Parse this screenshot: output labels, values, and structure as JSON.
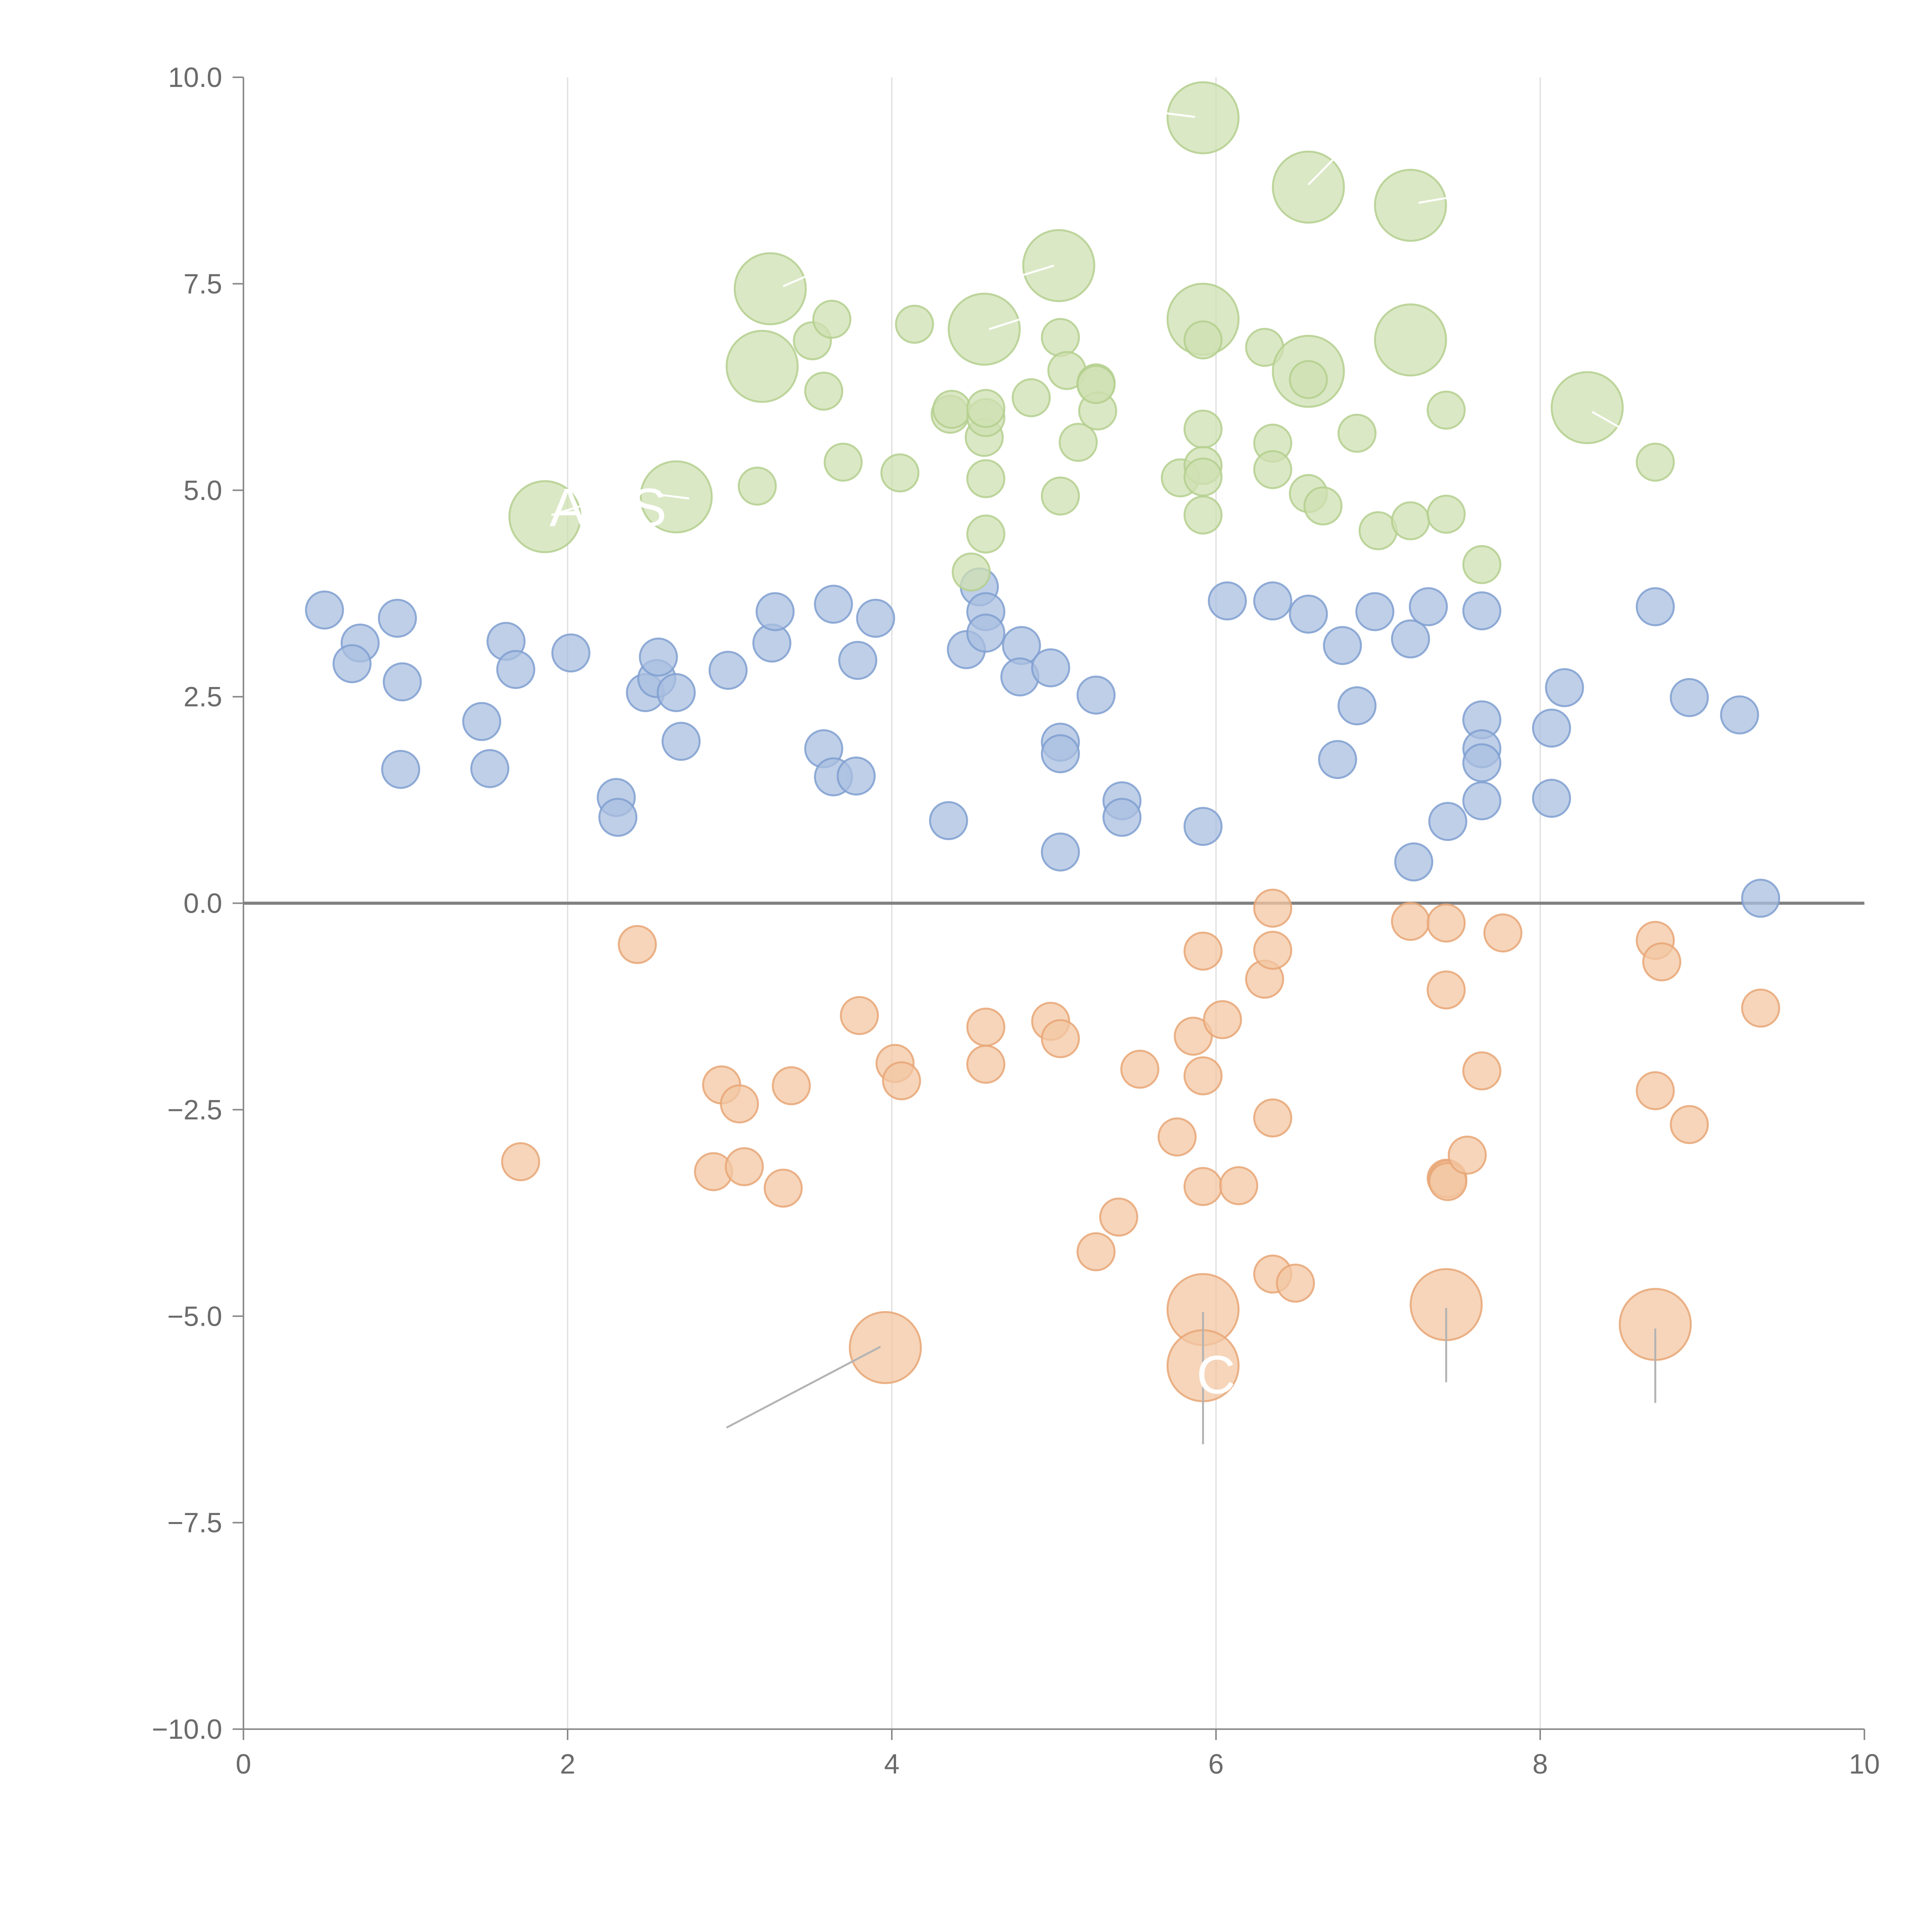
{
  "chart_data": {
    "type": "scatter",
    "title": "",
    "xlabel": "",
    "ylabel": "",
    "xlim": [
      0,
      10
    ],
    "ylim": [
      -10,
      10
    ],
    "x_ticks": [
      "0",
      "2",
      "4",
      "6",
      "8",
      "10"
    ],
    "y_ticks": [
      "−10.0",
      "−7.5",
      "−5.0",
      "−2.5",
      "0.0",
      "2.5",
      "5.0",
      "7.5",
      "10.0"
    ],
    "grid": "vertical",
    "zero_line": true,
    "colors": {
      "blue_fill": "#aabfe0",
      "blue_stroke": "#7f9fd0",
      "green_fill": "#cfe0b2",
      "green_stroke": "#b4cf8e",
      "orange_fill": "#f3c7a3",
      "orange_stroke": "#e8a676"
    },
    "annotations": [
      {
        "text": "A",
        "x": 2.0,
        "y": 4.8
      },
      {
        "text": "S",
        "x": 2.5,
        "y": 4.8
      },
      {
        "text": "C",
        "x": 6.0,
        "y": -5.7
      }
    ],
    "series": [
      {
        "name": "blue",
        "color": "#aabfe0",
        "stroke": "#7f9fd0",
        "points": [
          [
            0.5,
            3.55,
            1
          ],
          [
            0.72,
            3.15,
            1
          ],
          [
            0.67,
            2.9,
            1
          ],
          [
            0.95,
            3.45,
            1
          ],
          [
            0.98,
            2.68,
            1
          ],
          [
            0.97,
            1.62,
            1
          ],
          [
            1.47,
            2.2,
            1
          ],
          [
            1.52,
            1.63,
            1
          ],
          [
            1.62,
            3.17,
            1
          ],
          [
            1.68,
            2.83,
            1
          ],
          [
            2.02,
            3.03,
            1
          ],
          [
            2.3,
            1.28,
            1
          ],
          [
            2.31,
            1.04,
            1
          ],
          [
            2.48,
            2.55,
            1
          ],
          [
            2.55,
            2.72,
            1
          ],
          [
            2.56,
            2.98,
            1
          ],
          [
            2.67,
            2.55,
            1
          ],
          [
            2.7,
            1.96,
            1
          ],
          [
            2.99,
            2.82,
            1
          ],
          [
            3.26,
            3.15,
            1
          ],
          [
            3.28,
            3.53,
            1
          ],
          [
            3.58,
            1.87,
            1
          ],
          [
            3.64,
            3.62,
            1
          ],
          [
            3.64,
            1.53,
            1
          ],
          [
            3.78,
            1.54,
            1
          ],
          [
            3.79,
            2.94,
            1
          ],
          [
            3.9,
            3.45,
            1
          ],
          [
            4.35,
            1.0,
            1
          ],
          [
            4.46,
            3.07,
            1
          ],
          [
            4.54,
            3.83,
            1
          ],
          [
            4.58,
            3.53,
            1
          ],
          [
            4.58,
            3.27,
            1
          ],
          [
            4.8,
            3.12,
            1
          ],
          [
            4.79,
            2.74,
            1
          ],
          [
            4.98,
            2.85,
            1
          ],
          [
            5.04,
            1.95,
            1
          ],
          [
            5.04,
            1.81,
            1
          ],
          [
            5.04,
            0.62,
            1
          ],
          [
            5.26,
            2.52,
            1
          ],
          [
            5.42,
            1.24,
            1
          ],
          [
            5.42,
            1.04,
            1
          ],
          [
            5.92,
            0.93,
            1
          ],
          [
            6.07,
            3.66,
            1
          ],
          [
            6.35,
            3.66,
            1
          ],
          [
            6.57,
            3.5,
            1
          ],
          [
            6.78,
            3.12,
            1
          ],
          [
            6.75,
            1.74,
            1
          ],
          [
            6.87,
            2.39,
            1
          ],
          [
            6.98,
            3.53,
            1
          ],
          [
            7.2,
            3.2,
            1
          ],
          [
            7.31,
            3.59,
            1
          ],
          [
            7.22,
            0.5,
            1
          ],
          [
            7.43,
            0.99,
            1
          ],
          [
            7.64,
            3.54,
            1
          ],
          [
            7.64,
            2.22,
            1
          ],
          [
            7.64,
            1.87,
            1
          ],
          [
            7.64,
            1.7,
            1
          ],
          [
            7.64,
            1.24,
            1
          ],
          [
            8.07,
            2.12,
            1
          ],
          [
            8.07,
            1.27,
            1
          ],
          [
            8.15,
            2.61,
            1
          ],
          [
            8.71,
            3.59,
            1
          ],
          [
            8.92,
            2.49,
            1
          ],
          [
            9.23,
            2.28,
            1
          ],
          [
            9.36,
            0.06,
            1
          ]
        ]
      },
      {
        "name": "green",
        "color": "#cfe0b2",
        "stroke": "#b4cf8e",
        "points": [
          [
            1.86,
            4.68,
            2
          ],
          [
            2.67,
            4.92,
            2
          ],
          [
            3.17,
            5.05,
            1
          ],
          [
            3.2,
            6.5,
            2
          ],
          [
            3.25,
            7.44,
            2
          ],
          [
            3.51,
            6.81,
            1
          ],
          [
            3.58,
            6.2,
            1
          ],
          [
            3.63,
            7.07,
            1
          ],
          [
            3.7,
            5.34,
            1
          ],
          [
            4.05,
            5.21,
            1
          ],
          [
            4.14,
            7.01,
            1
          ],
          [
            4.36,
            5.92,
            1
          ],
          [
            4.37,
            5.98,
            1
          ],
          [
            4.49,
            4.01,
            1
          ],
          [
            4.57,
            6.95,
            2
          ],
          [
            4.57,
            5.64,
            1
          ],
          [
            4.58,
            5.14,
            1
          ],
          [
            4.58,
            5.88,
            1
          ],
          [
            4.58,
            5.99,
            1
          ],
          [
            4.58,
            4.47,
            1
          ],
          [
            4.86,
            6.12,
            1
          ],
          [
            5.03,
            7.72,
            2
          ],
          [
            5.04,
            4.93,
            1
          ],
          [
            5.04,
            6.85,
            1
          ],
          [
            5.08,
            6.45,
            1
          ],
          [
            5.15,
            5.58,
            1
          ],
          [
            5.26,
            6.3,
            1
          ],
          [
            5.27,
            5.96,
            1
          ],
          [
            5.26,
            6.28,
            1
          ],
          [
            5.78,
            5.15,
            1
          ],
          [
            5.92,
            7.07,
            2
          ],
          [
            5.92,
            6.82,
            1
          ],
          [
            5.92,
            5.74,
            1
          ],
          [
            5.92,
            5.3,
            1
          ],
          [
            5.92,
            5.16,
            1
          ],
          [
            5.92,
            4.7,
            1
          ],
          [
            6.3,
            6.73,
            1
          ],
          [
            6.35,
            5.57,
            1
          ],
          [
            6.35,
            5.25,
            1
          ],
          [
            6.57,
            8.67,
            2
          ],
          [
            6.57,
            6.44,
            2
          ],
          [
            6.57,
            6.34,
            1
          ],
          [
            6.57,
            4.96,
            1
          ],
          [
            6.66,
            4.81,
            1
          ],
          [
            6.87,
            5.69,
            1
          ],
          [
            7.0,
            4.51,
            1
          ],
          [
            7.2,
            8.45,
            2
          ],
          [
            7.2,
            6.82,
            2
          ],
          [
            7.2,
            4.63,
            1
          ],
          [
            7.42,
            5.97,
            1
          ],
          [
            7.42,
            4.71,
            1
          ],
          [
            7.64,
            4.1,
            1
          ],
          [
            8.29,
            6.0,
            2
          ],
          [
            8.71,
            5.34,
            1
          ],
          [
            5.92,
            9.51,
            2
          ]
        ]
      },
      {
        "name": "orange",
        "color": "#f3c7a3",
        "stroke": "#e8a676",
        "points": [
          [
            1.71,
            -3.13,
            1
          ],
          [
            2.43,
            -0.5,
            1
          ],
          [
            2.9,
            -3.25,
            1
          ],
          [
            2.95,
            -2.2,
            1
          ],
          [
            3.06,
            -2.43,
            1
          ],
          [
            3.09,
            -3.19,
            1
          ],
          [
            3.33,
            -3.45,
            1
          ],
          [
            3.38,
            -2.21,
            1
          ],
          [
            3.8,
            -1.36,
            1
          ],
          [
            4.02,
            -1.94,
            1
          ],
          [
            4.06,
            -2.15,
            1
          ],
          [
            3.96,
            -5.38,
            2
          ],
          [
            4.58,
            -1.5,
            1
          ],
          [
            4.58,
            -1.95,
            1
          ],
          [
            4.98,
            -1.43,
            1
          ],
          [
            5.04,
            -1.64,
            1
          ],
          [
            5.26,
            -4.22,
            1
          ],
          [
            5.4,
            -3.8,
            1
          ],
          [
            5.53,
            -2.01,
            1
          ],
          [
            5.76,
            -2.83,
            1
          ],
          [
            5.86,
            -1.61,
            1
          ],
          [
            5.92,
            -0.58,
            1
          ],
          [
            5.92,
            -2.09,
            1
          ],
          [
            5.92,
            -3.43,
            1
          ],
          [
            5.92,
            -4.92,
            2
          ],
          [
            5.92,
            -5.6,
            2
          ],
          [
            6.04,
            -1.41,
            1
          ],
          [
            6.14,
            -3.42,
            1
          ],
          [
            6.3,
            -0.92,
            1
          ],
          [
            6.35,
            -0.06,
            1
          ],
          [
            6.35,
            -0.57,
            1
          ],
          [
            6.35,
            -2.6,
            1
          ],
          [
            6.35,
            -4.49,
            1
          ],
          [
            6.49,
            -4.6,
            1
          ],
          [
            7.2,
            -0.22,
            1
          ],
          [
            7.42,
            -0.24,
            1
          ],
          [
            7.42,
            -1.05,
            1
          ],
          [
            7.42,
            -3.33,
            1
          ],
          [
            7.43,
            -3.34,
            1
          ],
          [
            7.43,
            -3.37,
            1
          ],
          [
            7.55,
            -3.05,
            1
          ],
          [
            7.64,
            -2.03,
            1
          ],
          [
            7.42,
            -4.86,
            2
          ],
          [
            7.77,
            -0.36,
            1
          ],
          [
            8.71,
            -0.45,
            1
          ],
          [
            8.75,
            -0.71,
            1
          ],
          [
            8.71,
            -2.27,
            1
          ],
          [
            8.92,
            -2.68,
            1
          ],
          [
            8.71,
            -5.1,
            2
          ],
          [
            9.36,
            -1.27,
            1
          ]
        ]
      }
    ]
  }
}
